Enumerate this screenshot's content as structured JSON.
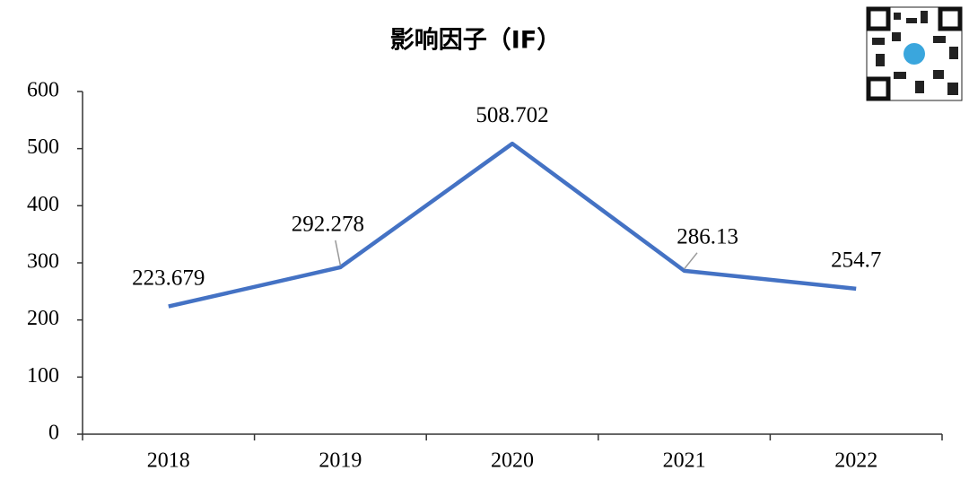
{
  "chart_data": {
    "type": "line",
    "title": "影响因子（IF）",
    "categories": [
      "2018",
      "2019",
      "2020",
      "2021",
      "2022"
    ],
    "series": [
      {
        "name": "IF",
        "color": "#4472c4",
        "values": [
          223.679,
          292.278,
          508.702,
          286.13,
          254.7
        ]
      }
    ],
    "ylim": [
      0,
      600
    ],
    "yticks": [
      0,
      100,
      200,
      300,
      400,
      500,
      600
    ],
    "grid": false,
    "data_labels": true
  }
}
